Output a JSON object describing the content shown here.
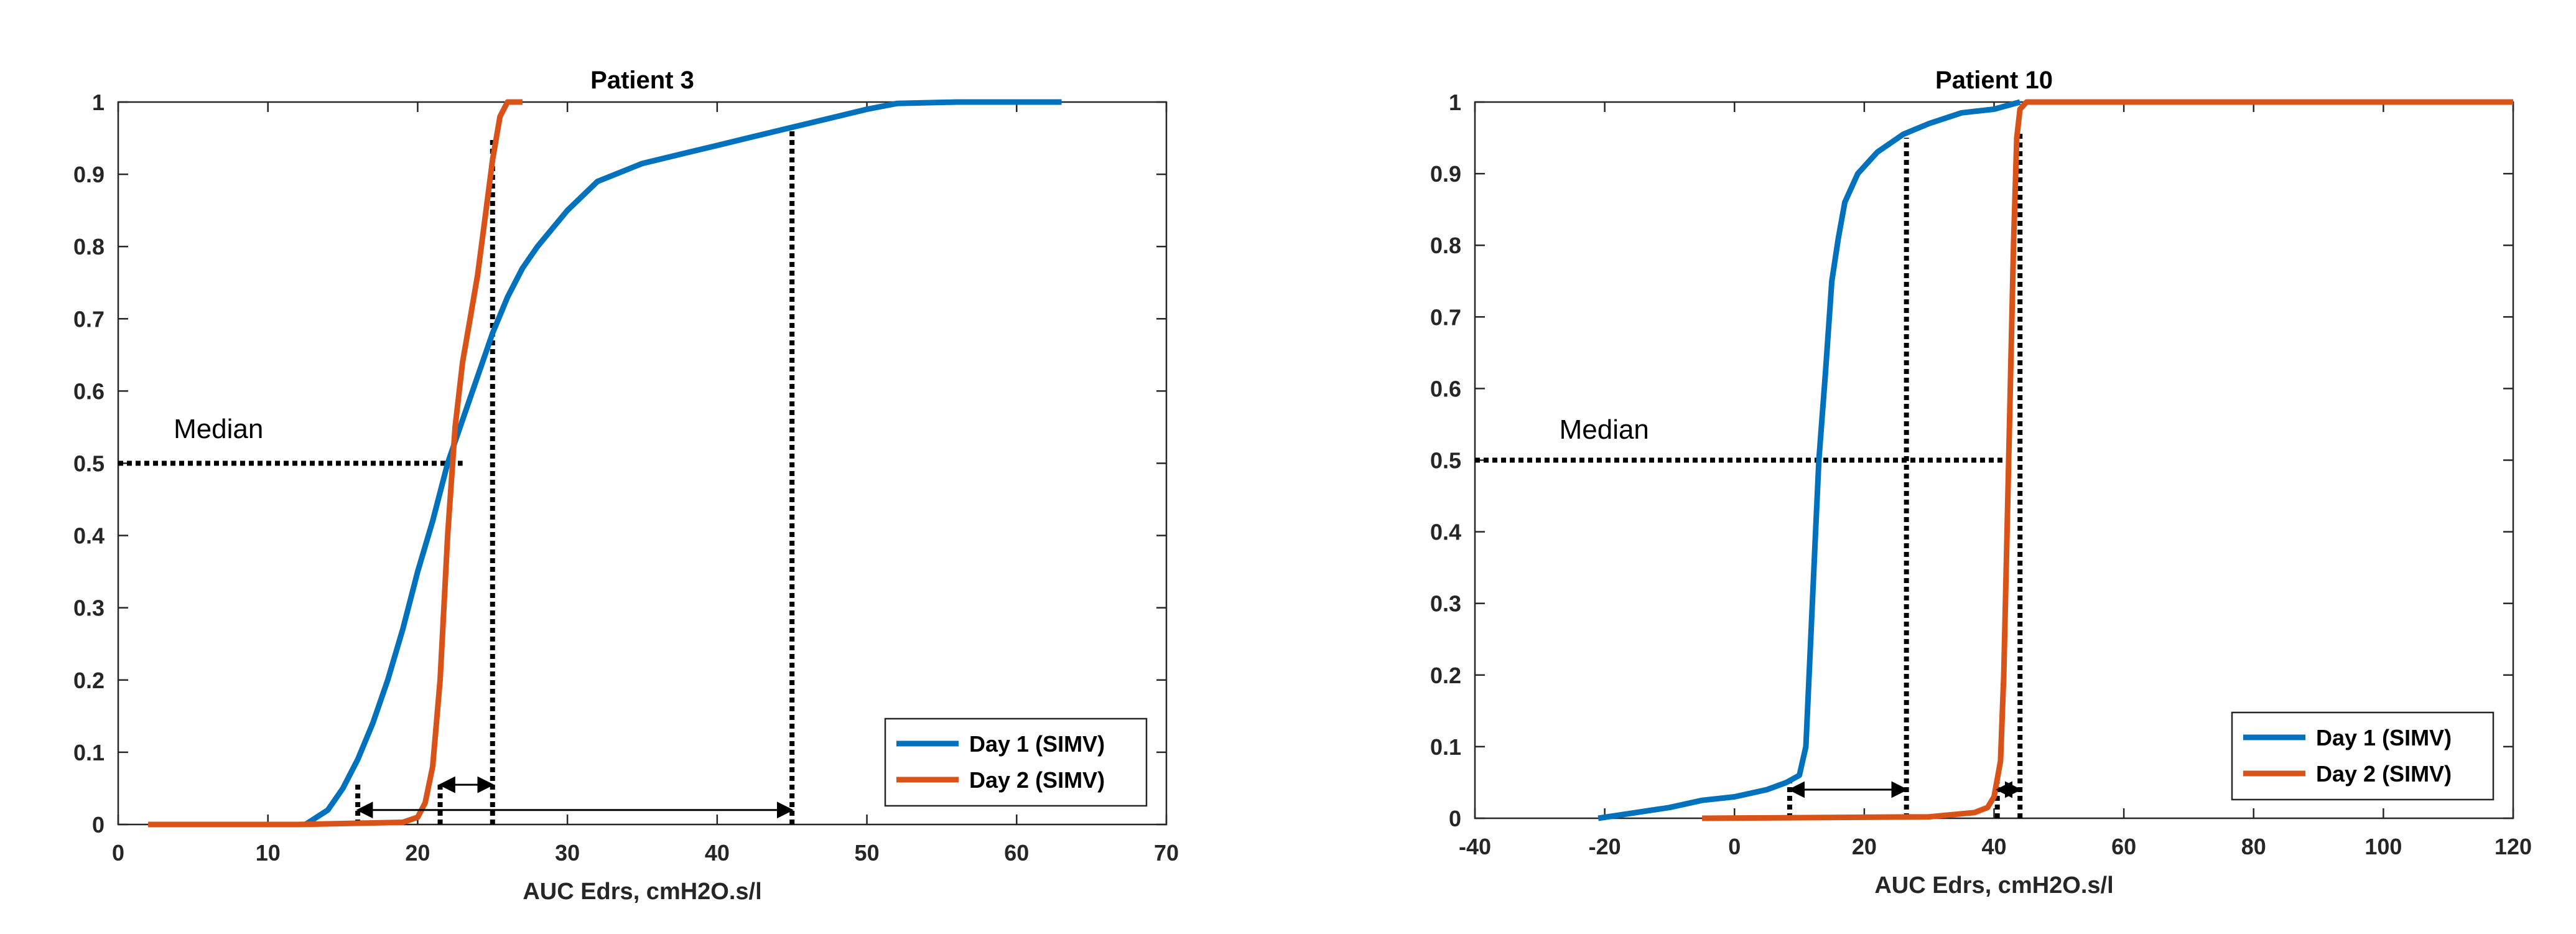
{
  "chart_data": [
    {
      "type": "line",
      "title": "Patient 3",
      "xlabel": "AUC Edrs, cmH2O.s/l",
      "xlim": [
        0,
        70
      ],
      "xticks": [
        0,
        10,
        20,
        30,
        40,
        50,
        60,
        70
      ],
      "ylim": [
        0,
        1
      ],
      "yticks": [
        0,
        0.1,
        0.2,
        0.3,
        0.4,
        0.5,
        0.6,
        0.7,
        0.8,
        0.9,
        1
      ],
      "legend": "lower right",
      "series": [
        {
          "name": "Day 1 (SIMV)",
          "color": "#0072bd",
          "x": [
            12.5,
            14,
            15,
            16,
            17,
            18,
            19,
            20,
            21,
            22,
            23,
            24,
            25,
            26,
            27,
            28,
            30,
            32,
            35,
            38,
            40,
            42,
            45,
            48,
            50,
            52,
            56,
            63
          ],
          "values": [
            0,
            0.02,
            0.05,
            0.09,
            0.14,
            0.2,
            0.27,
            0.35,
            0.42,
            0.5,
            0.56,
            0.62,
            0.68,
            0.73,
            0.77,
            0.8,
            0.85,
            0.89,
            0.915,
            0.93,
            0.94,
            0.95,
            0.965,
            0.98,
            0.99,
            0.998,
            1,
            1
          ]
        },
        {
          "name": "Day 2 (SIMV)",
          "color": "#d95319",
          "x": [
            2,
            12,
            19,
            20,
            20.5,
            21,
            21.5,
            22,
            22.5,
            23,
            23.5,
            24,
            24.5,
            25,
            25.5,
            26,
            27
          ],
          "values": [
            0,
            0,
            0.003,
            0.01,
            0.03,
            0.08,
            0.2,
            0.4,
            0.55,
            0.64,
            0.7,
            0.76,
            0.84,
            0.92,
            0.98,
            1,
            1
          ]
        }
      ],
      "annotation": {
        "text": "Median",
        "x": 3.7,
        "y": 0.535
      },
      "hline": {
        "y": 0.5,
        "x": 23
      },
      "vlines": [
        {
          "x": 16,
          "y": 0.06
        },
        {
          "x": 21.5,
          "y": 0.06
        },
        {
          "x": 25,
          "y": 0.95
        },
        {
          "x": 45,
          "y": 0.96
        }
      ],
      "arrows": [
        {
          "x": [
            16,
            45
          ],
          "y": 0.02
        },
        {
          "x": [
            21.5,
            25
          ],
          "y": 0.055
        }
      ]
    },
    {
      "type": "line",
      "title": "Patient 10",
      "xlabel": "AUC Edrs, cmH2O.s/l",
      "xlim": [
        -40,
        120
      ],
      "xticks": [
        -40,
        -20,
        0,
        20,
        40,
        60,
        80,
        100,
        120
      ],
      "ylim": [
        0,
        1
      ],
      "yticks": [
        0,
        0.1,
        0.2,
        0.3,
        0.4,
        0.5,
        0.6,
        0.7,
        0.8,
        0.9,
        1
      ],
      "legend": "lower right",
      "series": [
        {
          "name": "Day 1 (SIMV)",
          "color": "#0072bd",
          "x": [
            -21,
            -10,
            -5,
            0,
            5,
            8,
            10,
            11,
            11.5,
            12,
            12.5,
            13,
            13.5,
            14,
            15,
            16,
            17,
            19,
            22,
            26,
            30,
            35,
            40,
            44
          ],
          "values": [
            0,
            0.015,
            0.025,
            0.03,
            0.04,
            0.05,
            0.06,
            0.1,
            0.2,
            0.3,
            0.4,
            0.5,
            0.56,
            0.62,
            0.75,
            0.81,
            0.86,
            0.9,
            0.93,
            0.955,
            0.97,
            0.985,
            0.99,
            1
          ]
        },
        {
          "name": "Day 2 (SIMV)",
          "color": "#d95319",
          "x": [
            -5,
            30,
            37,
            39,
            40,
            41,
            41.5,
            42,
            42.5,
            43,
            43.5,
            44,
            45,
            60,
            120
          ],
          "values": [
            0,
            0.002,
            0.008,
            0.015,
            0.03,
            0.08,
            0.2,
            0.4,
            0.6,
            0.8,
            0.95,
            0.99,
            1,
            1,
            1
          ]
        }
      ],
      "annotation": {
        "text": "Median",
        "x": -27,
        "y": 0.53
      },
      "hline": {
        "y": 0.5,
        "x": 42
      },
      "vlines": [
        {
          "x": 8.5,
          "y": 0.05
        },
        {
          "x": 26.5,
          "y": 0.95
        },
        {
          "x": 40.5,
          "y": 0.05
        },
        {
          "x": 44,
          "y": 0.96
        }
      ],
      "arrows": [
        {
          "x": [
            8.5,
            26.5
          ],
          "y": 0.04
        },
        {
          "x": [
            40.5,
            44
          ],
          "y": 0.04
        }
      ]
    }
  ]
}
